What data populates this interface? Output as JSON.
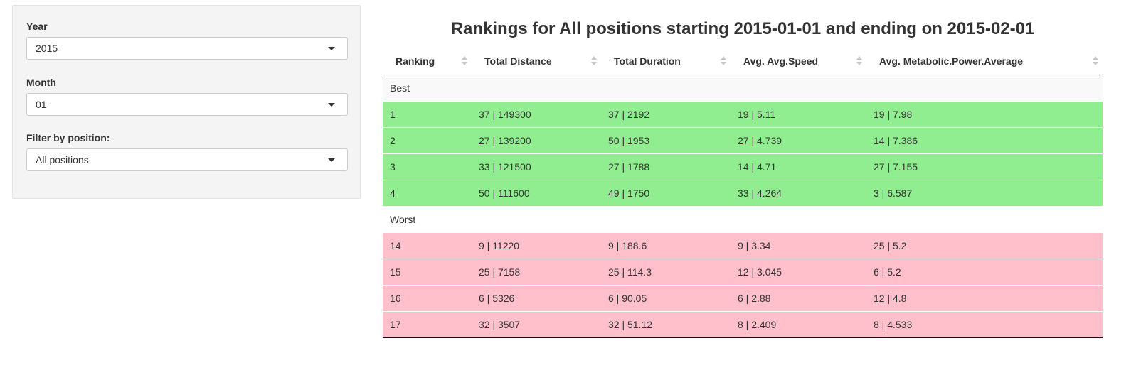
{
  "sidebar": {
    "year": {
      "label": "Year",
      "value": "2015"
    },
    "month": {
      "label": "Month",
      "value": "01"
    },
    "position": {
      "label": "Filter by position:",
      "value": "All positions"
    }
  },
  "main": {
    "title": "Rankings for All positions starting 2015-01-01 and ending on 2015-02-01",
    "columns": [
      "Ranking",
      "Total Distance",
      "Total Duration",
      "Avg. Avg.Speed",
      "Avg. Metabolic.Power.Average"
    ],
    "groups": {
      "best": "Best",
      "worst": "Worst"
    },
    "best_rows": [
      [
        "1",
        "37 | 149300",
        "37 | 2192",
        "19 | 5.11",
        "19 | 7.98"
      ],
      [
        "2",
        "27 | 139200",
        "50 | 1953",
        "27 | 4.739",
        "14 | 7.386"
      ],
      [
        "3",
        "33 | 121500",
        "27 | 1788",
        "14 | 4.71",
        "27 | 7.155"
      ],
      [
        "4",
        "50 | 111600",
        "49 | 1750",
        "33 | 4.264",
        "3 | 6.587"
      ]
    ],
    "worst_rows": [
      [
        "14",
        "9 | 11220",
        "9 | 188.6",
        "9 | 3.34",
        "25 | 5.2"
      ],
      [
        "15",
        "25 | 7158",
        "25 | 114.3",
        "12 | 3.045",
        "6 | 5.2"
      ],
      [
        "16",
        "6 | 5326",
        "6 | 90.05",
        "6 | 2.88",
        "12 | 4.8"
      ],
      [
        "17",
        "32 | 3507",
        "32 | 51.12",
        "8 | 2.409",
        "8 | 4.533"
      ]
    ]
  },
  "colors": {
    "best_row": "#90ee90",
    "worst_row": "#ffc0cb",
    "sidebar_bg": "#f4f4f4"
  }
}
